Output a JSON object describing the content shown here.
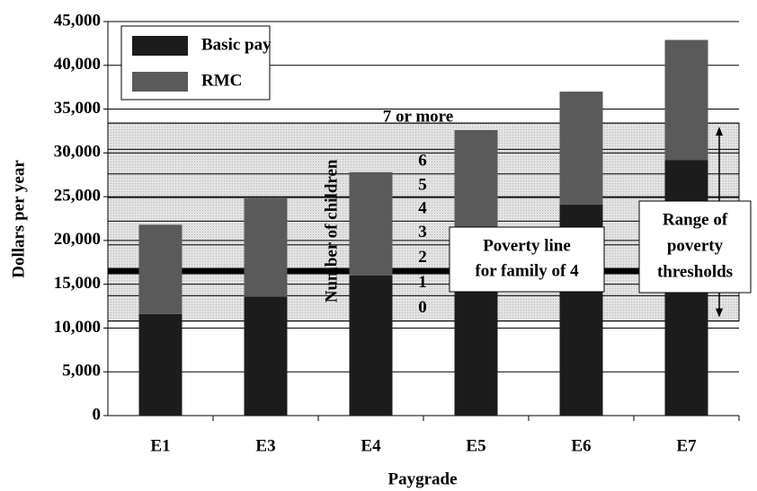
{
  "chart_data": {
    "type": "stacked_bar",
    "x_label": "Paygrade",
    "y_label": "Dollars per year",
    "categories": [
      "E1",
      "E3",
      "E4",
      "E5",
      "E6",
      "E7"
    ],
    "series": [
      {
        "name": "Basic pay",
        "color": "#1c1c1c",
        "values": [
          11600,
          13600,
          16000,
          20000,
          24100,
          29200
        ]
      },
      {
        "name": "RMC",
        "color": "#5a5a5a",
        "values": [
          10200,
          11200,
          11800,
          12600,
          12900,
          13700
        ]
      }
    ],
    "ylim": [
      0,
      45000
    ],
    "yticks": [
      {
        "value": 0,
        "label": "0"
      },
      {
        "value": 5000,
        "label": "5,000"
      },
      {
        "value": 10000,
        "label": "10,000"
      },
      {
        "value": 15000,
        "label": "15,000"
      },
      {
        "value": 20000,
        "label": "20,000"
      },
      {
        "value": 25000,
        "label": "25,000"
      },
      {
        "value": 30000,
        "label": "30,000"
      },
      {
        "value": 35000,
        "label": "35,000"
      },
      {
        "value": 40000,
        "label": "40,000"
      },
      {
        "value": 45000,
        "label": "45,000"
      }
    ],
    "grid": true,
    "legend": "top-left",
    "children_title": "Number of children",
    "children_levels": {
      "labels": [
        "0",
        "1",
        "2",
        "3",
        "4",
        "5",
        "6",
        "7 or more"
      ],
      "bounds": [
        10800,
        13700,
        16500,
        19500,
        22200,
        24900,
        27600,
        30400,
        33400
      ]
    },
    "poverty_line": {
      "value": 16500,
      "label_lines": [
        "Poverty line",
        "for family of 4"
      ]
    },
    "range_label_lines": [
      "Range of",
      "poverty",
      "thresholds"
    ]
  }
}
